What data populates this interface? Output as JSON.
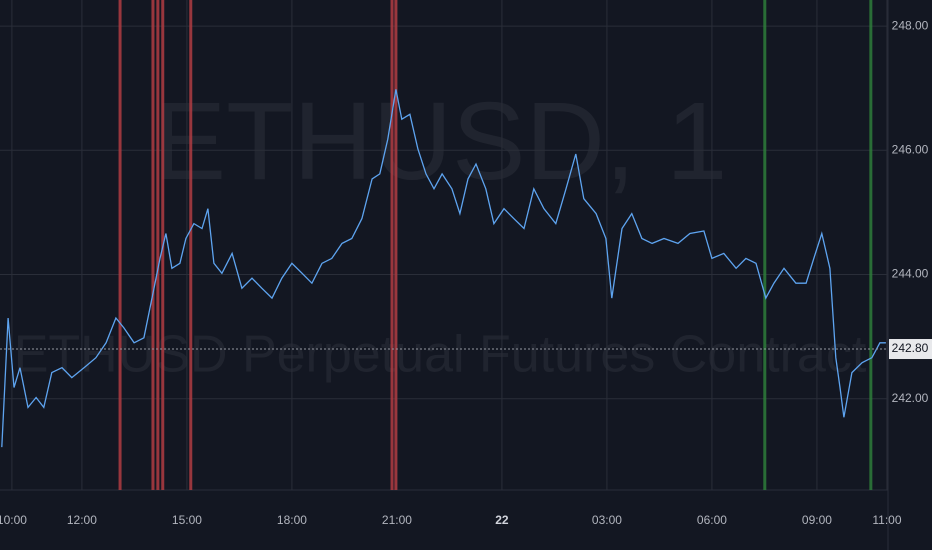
{
  "chart_data": {
    "type": "line",
    "watermark": "ETHUSD, 1",
    "watermark_subtitle": "ETHUSD Perpetual Futures Contract",
    "x": [
      9.71,
      9.89,
      10.06,
      10.23,
      10.46,
      10.69,
      10.91,
      11.14,
      11.43,
      11.71,
      12.06,
      12.4,
      12.69,
      12.97,
      13.2,
      13.49,
      13.77,
      14.06,
      14.23,
      14.4,
      14.57,
      14.8,
      14.97,
      15.2,
      15.43,
      15.6,
      15.77,
      16.0,
      16.29,
      16.57,
      16.86,
      17.14,
      17.43,
      17.71,
      18.0,
      18.29,
      18.57,
      18.86,
      19.14,
      19.43,
      19.71,
      20.0,
      20.29,
      20.51,
      20.74,
      20.97,
      21.14,
      21.37,
      21.6,
      21.83,
      22.06,
      22.29,
      22.57,
      22.8,
      23.03,
      23.26,
      23.54,
      23.77,
      24.06,
      24.34,
      24.63,
      24.91,
      25.2,
      25.54,
      25.83,
      26.11,
      26.34,
      26.69,
      26.97,
      27.14,
      27.43,
      27.71,
      28.0,
      28.29,
      28.63,
      29.03,
      29.37,
      29.77,
      30.0,
      30.34,
      30.69,
      30.97,
      31.26,
      31.54,
      31.77,
      32.06,
      32.4,
      32.69,
      32.91,
      33.14,
      33.37,
      33.54,
      33.66,
      33.77,
      34.0,
      34.29,
      34.57,
      34.8,
      34.97
    ],
    "series": [
      {
        "color": "#5ea4f0",
        "values": [
          241.22,
          243.3,
          242.18,
          242.5,
          241.86,
          242.02,
          241.86,
          242.42,
          242.5,
          242.34,
          242.5,
          242.66,
          242.9,
          243.3,
          243.14,
          242.9,
          242.98,
          243.78,
          244.26,
          244.66,
          244.1,
          244.18,
          244.58,
          244.82,
          244.74,
          245.06,
          244.18,
          244.02,
          244.34,
          243.78,
          243.94,
          243.78,
          243.62,
          243.94,
          244.18,
          244.02,
          243.86,
          244.18,
          244.26,
          244.5,
          244.58,
          244.9,
          245.54,
          245.62,
          246.18,
          246.98,
          246.5,
          246.58,
          246.02,
          245.62,
          245.38,
          245.62,
          245.38,
          244.98,
          245.54,
          245.78,
          245.38,
          244.82,
          245.06,
          244.9,
          244.74,
          245.38,
          245.06,
          244.82,
          245.38,
          245.94,
          245.22,
          244.98,
          244.58,
          243.62,
          244.74,
          244.98,
          244.58,
          244.5,
          244.58,
          244.5,
          244.66,
          244.7,
          244.26,
          244.34,
          244.1,
          244.26,
          244.18,
          243.62,
          243.86,
          244.1,
          243.86,
          243.86,
          244.26,
          244.66,
          244.1,
          242.66,
          242.18,
          241.7,
          242.42,
          242.58,
          242.66,
          242.9,
          242.9
        ]
      }
    ],
    "xlim": [
      9.66,
      35.03
    ],
    "ylim": [
      240.53,
      248.42
    ],
    "xticks": [
      {
        "value": 10,
        "label": "10:00"
      },
      {
        "value": 12,
        "label": "12:00"
      },
      {
        "value": 15,
        "label": "15:00"
      },
      {
        "value": 18,
        "label": "18:00"
      },
      {
        "value": 21,
        "label": "21:00"
      },
      {
        "value": 24,
        "label": "22"
      },
      {
        "value": 27,
        "label": "03:00"
      },
      {
        "value": 30,
        "label": "06:00"
      },
      {
        "value": 33,
        "label": "09:00"
      },
      {
        "value": 35,
        "label": "11:00"
      }
    ],
    "yticks": [
      {
        "value": 242,
        "label": "242.00"
      },
      {
        "value": 244,
        "label": "244.00"
      },
      {
        "value": 246,
        "label": "246.00"
      },
      {
        "value": 248,
        "label": "248.00"
      }
    ],
    "last_price": {
      "value": 242.8,
      "label": "242.80"
    },
    "vlines": [
      {
        "x": 13.09,
        "color": "#b03c42"
      },
      {
        "x": 14.03,
        "color": "#b03c42"
      },
      {
        "x": 14.17,
        "color": "#b03c42"
      },
      {
        "x": 14.31,
        "color": "#b03c42"
      },
      {
        "x": 15.11,
        "color": "#b03c42"
      },
      {
        "x": 20.86,
        "color": "#b03c42"
      },
      {
        "x": 20.97,
        "color": "#b03c42"
      },
      {
        "x": 31.51,
        "color": "#2e7d3a"
      },
      {
        "x": 34.54,
        "color": "#2e7d3a"
      }
    ],
    "grid": true
  }
}
